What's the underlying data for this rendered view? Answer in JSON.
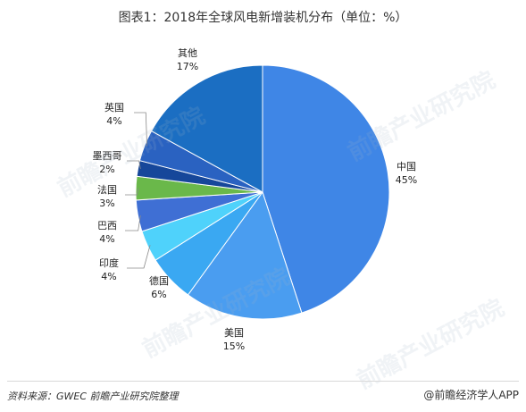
{
  "chart_data": {
    "type": "pie",
    "title": "图表1：2018年全球风电新增装机分布（单位：%）",
    "slices": [
      {
        "label": "中国",
        "value": 45,
        "display": "45%",
        "color": "#3f86e6"
      },
      {
        "label": "美国",
        "value": 15,
        "display": "15%",
        "color": "#4a9df0"
      },
      {
        "label": "德国",
        "value": 6,
        "display": "6%",
        "color": "#3aa8f2"
      },
      {
        "label": "印度",
        "value": 4,
        "display": "4%",
        "color": "#4fd2fb"
      },
      {
        "label": "巴西",
        "value": 4,
        "display": "4%",
        "color": "#3f6fd4"
      },
      {
        "label": "法国",
        "value": 3,
        "display": "3%",
        "color": "#6ab84a"
      },
      {
        "label": "墨西哥",
        "value": 2,
        "display": "2%",
        "color": "#16479a"
      },
      {
        "label": "英国",
        "value": 4,
        "display": "4%",
        "color": "#2a62c1"
      },
      {
        "label": "其他",
        "value": 17,
        "display": "17%",
        "color": "#1b6ec2"
      }
    ]
  },
  "footer": {
    "source": "资料来源：GWEC  前瞻产业研究院整理",
    "brand": "@前瞻经济学人APP"
  },
  "watermark_text": "前瞻产业研究院"
}
